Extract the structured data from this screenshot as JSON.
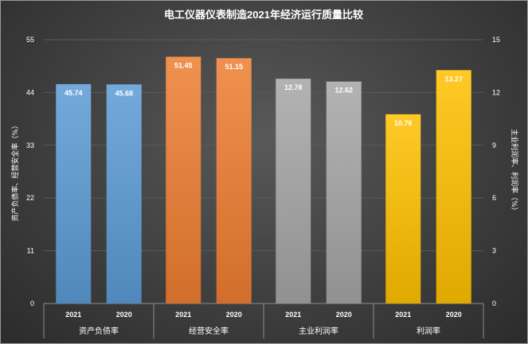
{
  "chart_data": {
    "type": "bar",
    "title": "电工仪器仪表制造2021年经济运行质量比较",
    "y_left_label": "资产负债率、经营安全率（%）",
    "y_right_label": "主业利润率、利润率（%）",
    "y_left_lim": [
      0,
      55
    ],
    "y_left_ticks": [
      "0",
      "11",
      "22",
      "33",
      "44",
      "55"
    ],
    "y_right_lim": [
      0,
      15
    ],
    "y_right_ticks": [
      "0",
      "3",
      "6",
      "9",
      "12",
      "15"
    ],
    "grid": true,
    "legend": "none",
    "groups": [
      {
        "name": "资产负债率",
        "axis": "left",
        "color": "#5b9bd5",
        "bars": [
          {
            "year": "2021",
            "value": 45.74,
            "label": "45.74"
          },
          {
            "year": "2020",
            "value": 45.68,
            "label": "45.68"
          }
        ]
      },
      {
        "name": "经营安全率",
        "axis": "left",
        "color": "#ed7d31",
        "bars": [
          {
            "year": "2021",
            "value": 51.45,
            "label": "51.45"
          },
          {
            "year": "2020",
            "value": 51.15,
            "label": "51.15"
          }
        ]
      },
      {
        "name": "主业利润率",
        "axis": "right",
        "color": "#a5a5a5",
        "bars": [
          {
            "year": "2021",
            "value": 12.78,
            "label": "12.78"
          },
          {
            "year": "2020",
            "value": 12.62,
            "label": "12.62"
          }
        ]
      },
      {
        "name": "利润率",
        "axis": "right",
        "color": "#ffc000",
        "bars": [
          {
            "year": "2021",
            "value": 10.76,
            "label": "10.76"
          },
          {
            "year": "2020",
            "value": 13.27,
            "label": "13.27"
          }
        ]
      }
    ]
  }
}
